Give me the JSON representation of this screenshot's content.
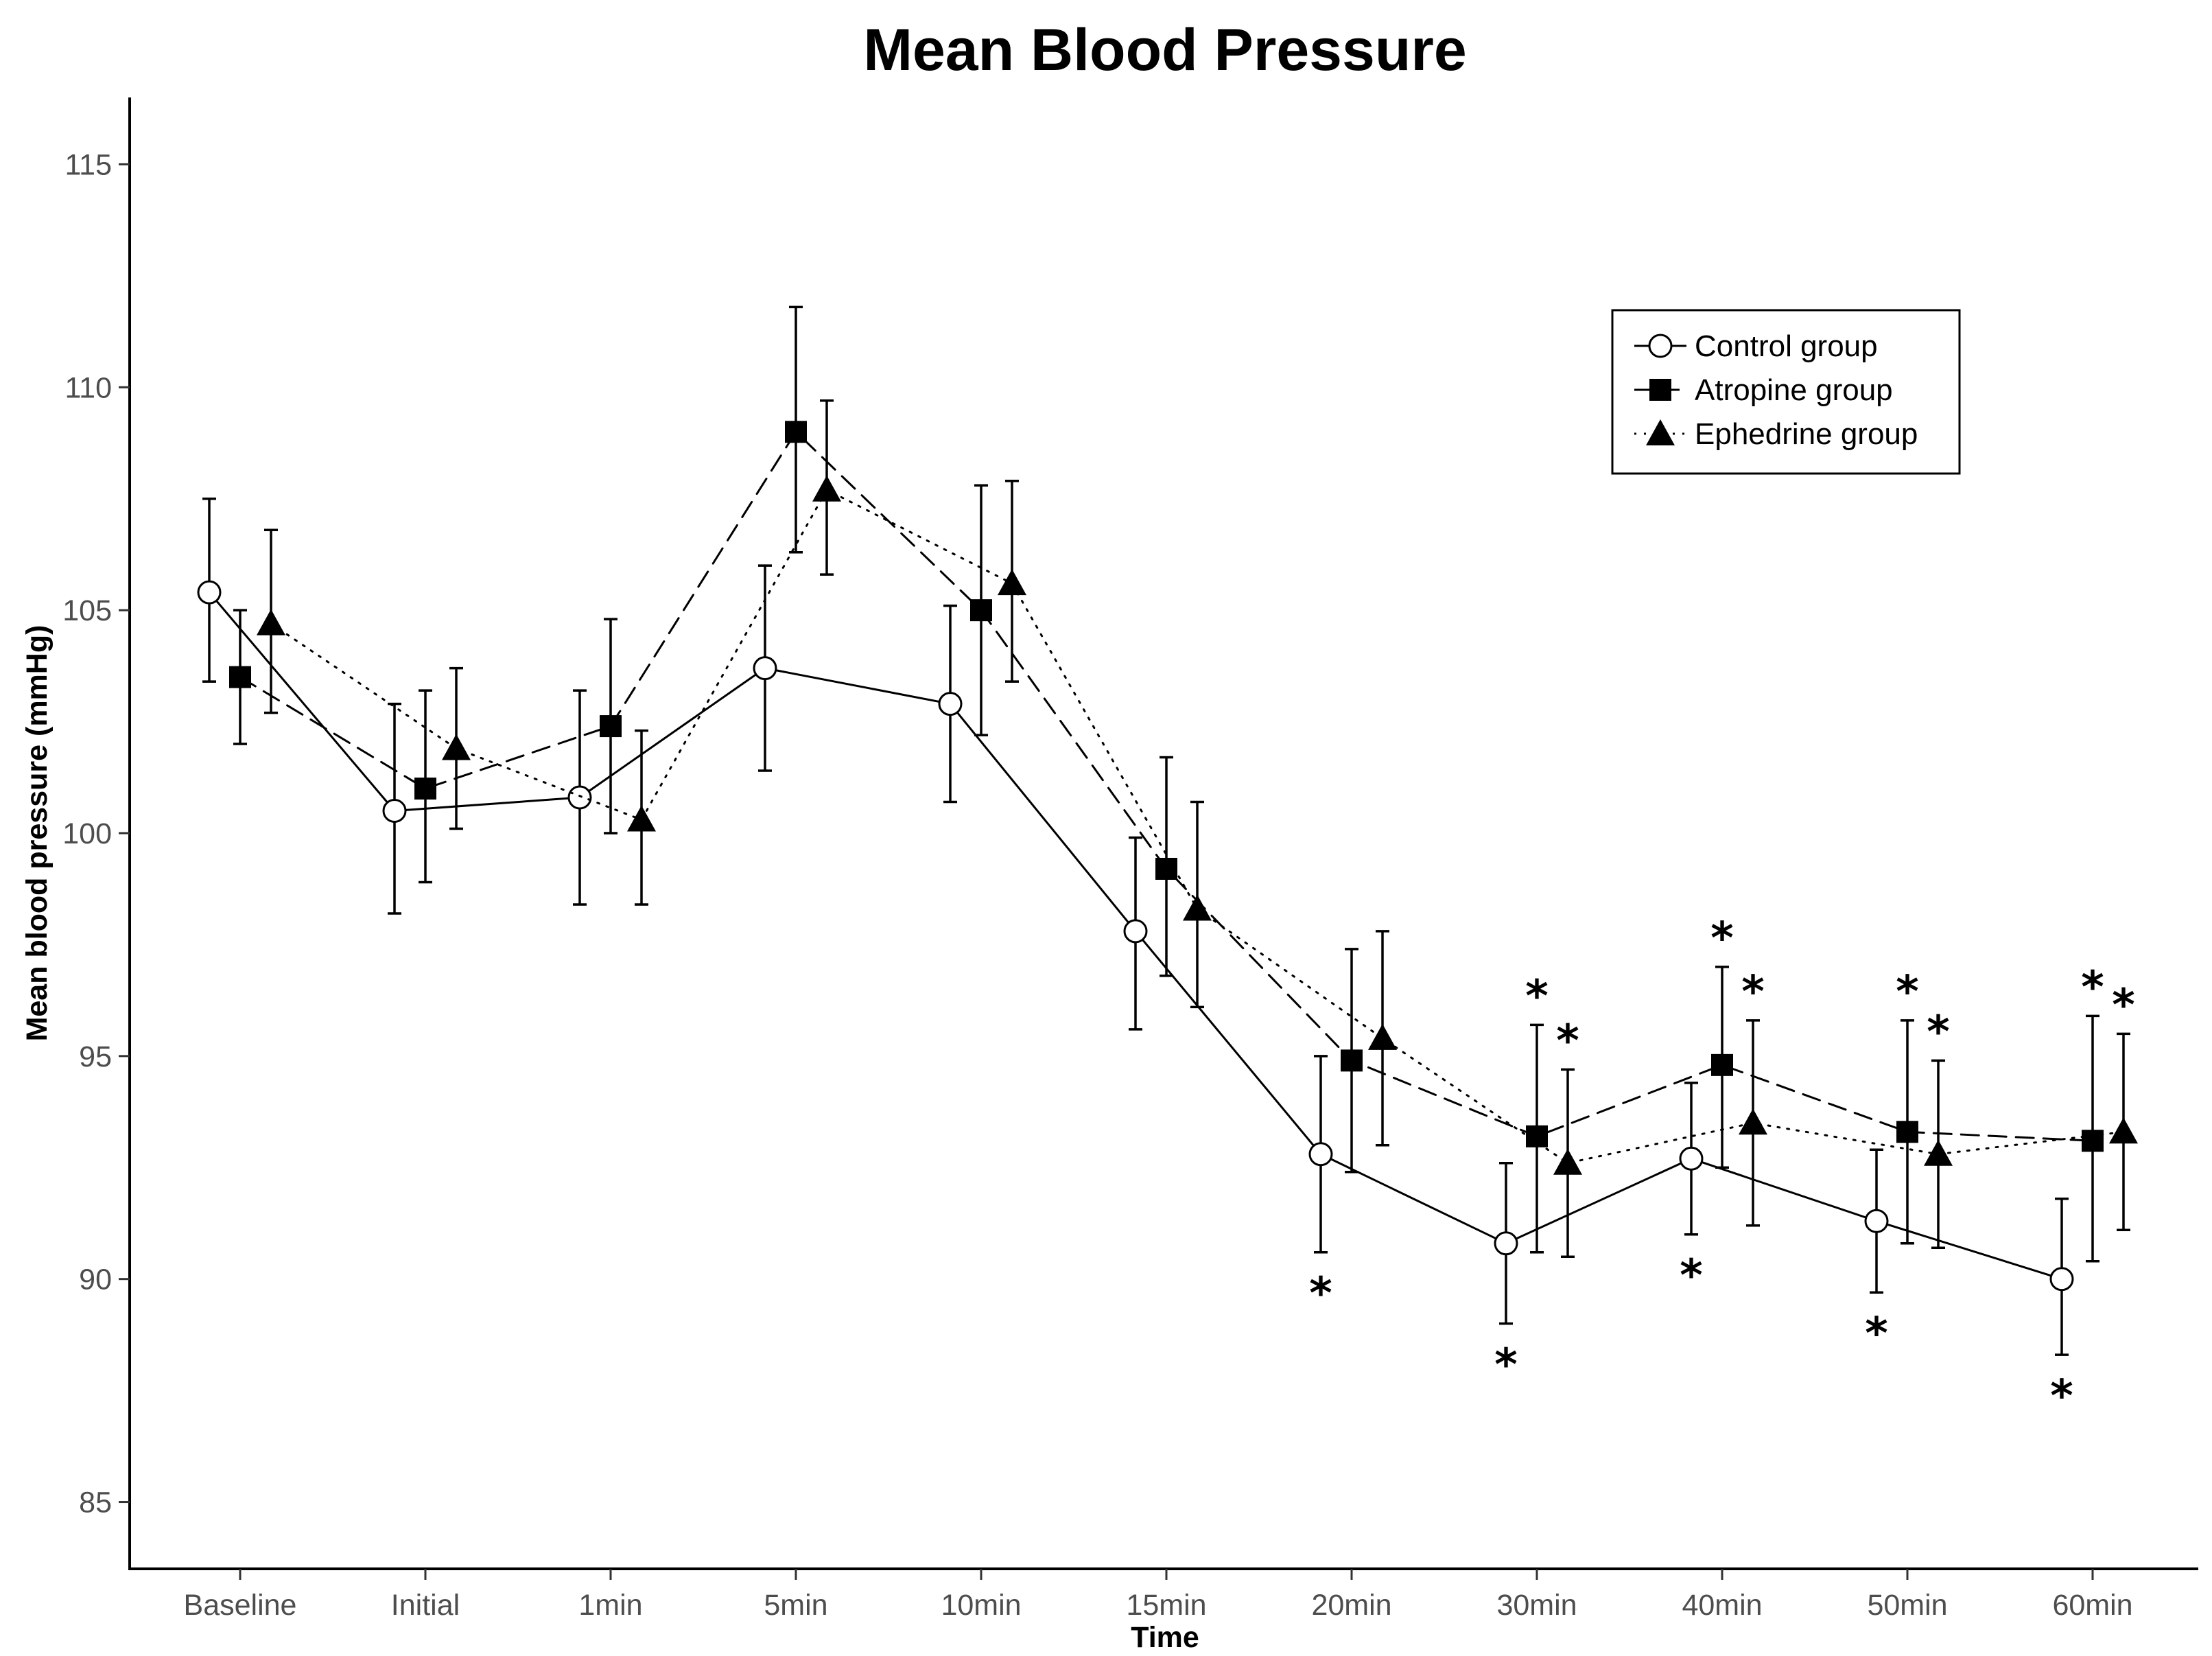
{
  "chart_data": {
    "type": "line",
    "title": "Mean Blood Pressure",
    "xlabel": "Time",
    "ylabel": "Mean blood pressure (mmHg)",
    "ylim": [
      83.5,
      116.5
    ],
    "yticks": [
      85,
      90,
      95,
      100,
      105,
      110,
      115
    ],
    "categories": [
      "Baseline",
      "Initial",
      "1min",
      "5min",
      "10min",
      "15min",
      "20min",
      "30min",
      "40min",
      "50min",
      "60min"
    ],
    "grid": false,
    "legend_position": "top-right",
    "significance_marker": "*",
    "series": [
      {
        "name": "Control group",
        "marker": "circle-open",
        "line": "solid",
        "values": [
          105.4,
          100.5,
          100.8,
          103.7,
          102.9,
          97.8,
          92.8,
          90.8,
          92.7,
          91.3,
          90.0
        ],
        "err_high": [
          107.5,
          102.9,
          103.2,
          106.0,
          105.1,
          99.9,
          95.0,
          92.6,
          94.4,
          92.9,
          91.8
        ],
        "err_low": [
          103.4,
          98.2,
          98.4,
          101.4,
          100.7,
          95.6,
          90.6,
          89.0,
          91.0,
          89.7,
          88.3
        ],
        "significant": [
          false,
          false,
          false,
          false,
          false,
          false,
          true,
          true,
          true,
          true,
          true
        ],
        "star_position": "below"
      },
      {
        "name": "Atropine group",
        "marker": "square-filled",
        "line": "dashed",
        "values": [
          103.5,
          101.0,
          102.4,
          109.0,
          105.0,
          99.2,
          94.9,
          93.2,
          94.8,
          93.3,
          93.1
        ],
        "err_high": [
          105.0,
          103.2,
          104.8,
          111.8,
          107.8,
          101.7,
          97.4,
          95.7,
          97.0,
          95.8,
          95.9
        ],
        "err_low": [
          102.0,
          98.9,
          100.0,
          106.3,
          102.2,
          96.8,
          92.4,
          90.6,
          92.5,
          90.8,
          90.4
        ],
        "significant": [
          false,
          false,
          false,
          false,
          false,
          false,
          false,
          true,
          true,
          true,
          true
        ],
        "star_position": "above"
      },
      {
        "name": "Ephedrine group",
        "marker": "triangle-filled",
        "line": "dotted",
        "values": [
          104.7,
          101.9,
          100.3,
          107.7,
          105.6,
          98.3,
          95.4,
          92.6,
          93.5,
          92.8,
          93.3
        ],
        "err_high": [
          106.8,
          103.7,
          102.3,
          109.7,
          107.9,
          100.7,
          97.8,
          94.7,
          95.8,
          94.9,
          95.5
        ],
        "err_low": [
          102.7,
          100.1,
          98.4,
          105.8,
          103.4,
          96.1,
          93.0,
          90.5,
          91.2,
          90.7,
          91.1
        ],
        "significant": [
          false,
          false,
          false,
          false,
          false,
          false,
          false,
          true,
          true,
          true,
          true
        ],
        "star_position": "above"
      }
    ]
  }
}
